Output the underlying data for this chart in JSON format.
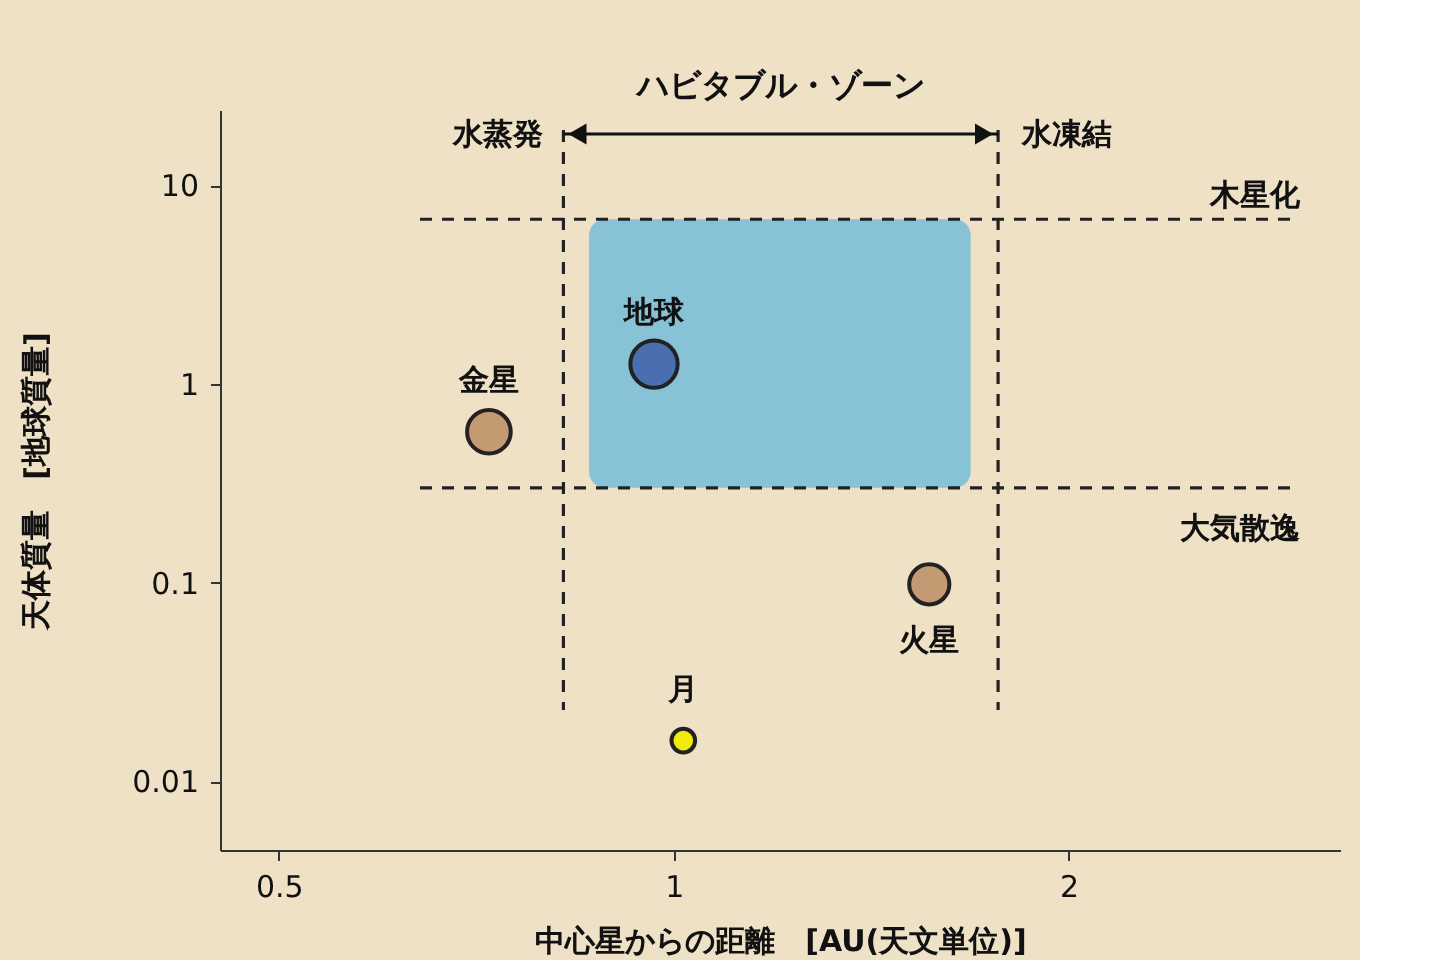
{
  "chart_data": {
    "type": "bubble",
    "xlabel": "中心星からの距離　[AU(天文単位)]",
    "ylabel": "天体質量　[地球質量]",
    "log": "xy",
    "x": [
      0.723,
      0.966,
      1.566,
      1.017
    ],
    "values": [
      0.575,
      1.26,
      0.098,
      0.016
    ],
    "sizes": [
      0.85,
      1,
      0.72,
      0.25
    ],
    "colors": [
      "#c39a72",
      "#4a6fb0",
      "#c39a72",
      "#f2ea0a"
    ],
    "xlim": [
      0.451,
      3.22
    ],
    "xticks": [
      0.5,
      1,
      2
    ],
    "ylim": [
      0.0045,
      24
    ],
    "yticks": [
      0.01,
      0.1,
      1,
      10
    ],
    "grid": false,
    "legend": false,
    "ref_lines": [
      {
        "axis": "x",
        "value": 0.824,
        "label": "水蒸発",
        "line_style": "dashed"
      },
      {
        "axis": "x",
        "value": 1.767,
        "label": "水凍結",
        "line_style": "dashed"
      },
      {
        "axis": "y",
        "value": 6.76,
        "label": "木星化",
        "line_style": "dashed"
      },
      {
        "axis": "y",
        "value": 0.3,
        "label": "大気散逸",
        "line_style": "dashed"
      }
    ],
    "bands": [
      {
        "axis": "x",
        "from": 0.862,
        "to": 1.684,
        "color": "#74bcd8"
      }
    ],
    "annotations": [
      "ハビタブル・ゾーン",
      {
        "text": "金星",
        "x": 0.723,
        "y": 0.575
      },
      {
        "text": "地球",
        "x": 0.966,
        "y": 1.26
      },
      {
        "text": "火星",
        "x": 1.566,
        "y": 0.098
      },
      {
        "text": "月",
        "x": 1.017,
        "y": 0.016
      }
    ]
  }
}
